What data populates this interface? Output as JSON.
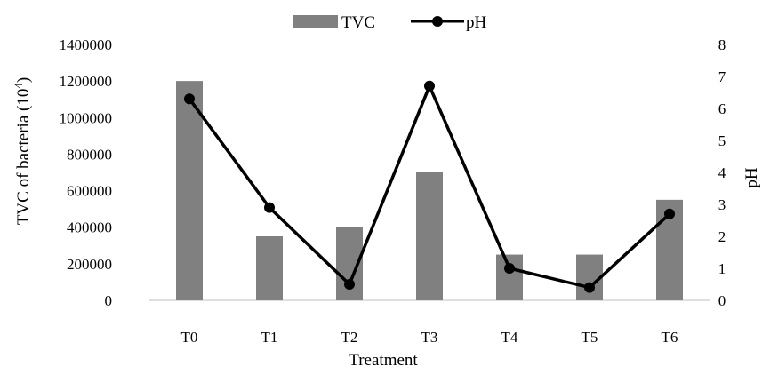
{
  "chart_data": {
    "type": "bar",
    "categories": [
      "T0",
      "T1",
      "T2",
      "T3",
      "T4",
      "T5",
      "T6"
    ],
    "series": [
      {
        "name": "TVC",
        "type": "bar",
        "axis": "left",
        "color": "#808080",
        "values": [
          1200000,
          350000,
          400000,
          700000,
          250000,
          250000,
          550000
        ]
      },
      {
        "name": "pH",
        "type": "line",
        "axis": "right",
        "color": "#000000",
        "marker": "circle",
        "values": [
          6.3,
          2.9,
          0.5,
          6.7,
          1.0,
          0.4,
          2.7
        ]
      }
    ],
    "xlabel": "Treatment",
    "ylabel_main": "TVC of bacteria (10",
    "ylabel_sup": "4",
    "ylabel_close": ")",
    "y2label": "pH",
    "ylim": [
      0,
      1400000
    ],
    "y2lim": [
      0,
      8
    ],
    "yticks": [
      "0",
      "200000",
      "400000",
      "600000",
      "800000",
      "1000000",
      "1200000",
      "1400000"
    ],
    "y2ticks": [
      "0",
      "1",
      "2",
      "3",
      "4",
      "5",
      "6",
      "7",
      "8"
    ],
    "grid": false,
    "legend_position": "top-center"
  }
}
